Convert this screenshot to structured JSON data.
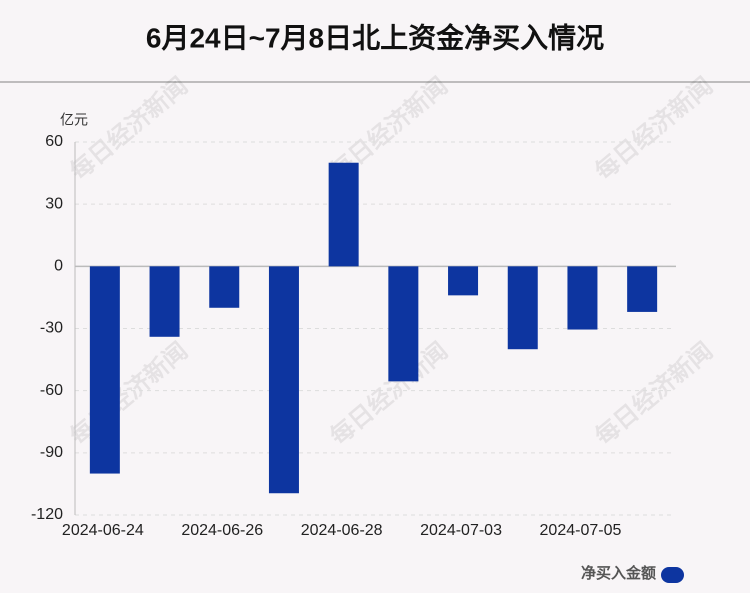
{
  "chart_data": {
    "type": "bar",
    "title": "6月24日~7月8日北上资金净买入情况",
    "y_unit": "亿元",
    "watermark": "每日经济新闻",
    "categories": [
      "2024-06-24",
      null,
      "2024-06-26",
      null,
      "2024-06-28",
      null,
      "2024-07-03",
      null,
      "2024-07-05",
      null
    ],
    "series": [
      {
        "name": "净买入金额",
        "color": "#0d35a0",
        "values": [
          -100,
          -34,
          -20,
          -109.5,
          50,
          -55.5,
          -14,
          -40,
          -30.5,
          -22
        ]
      }
    ],
    "ylim": [
      -120,
      60
    ],
    "yticks": [
      60,
      30,
      0,
      -30,
      -60,
      -90,
      -120
    ],
    "grid": true,
    "legend": "bottom-right"
  }
}
